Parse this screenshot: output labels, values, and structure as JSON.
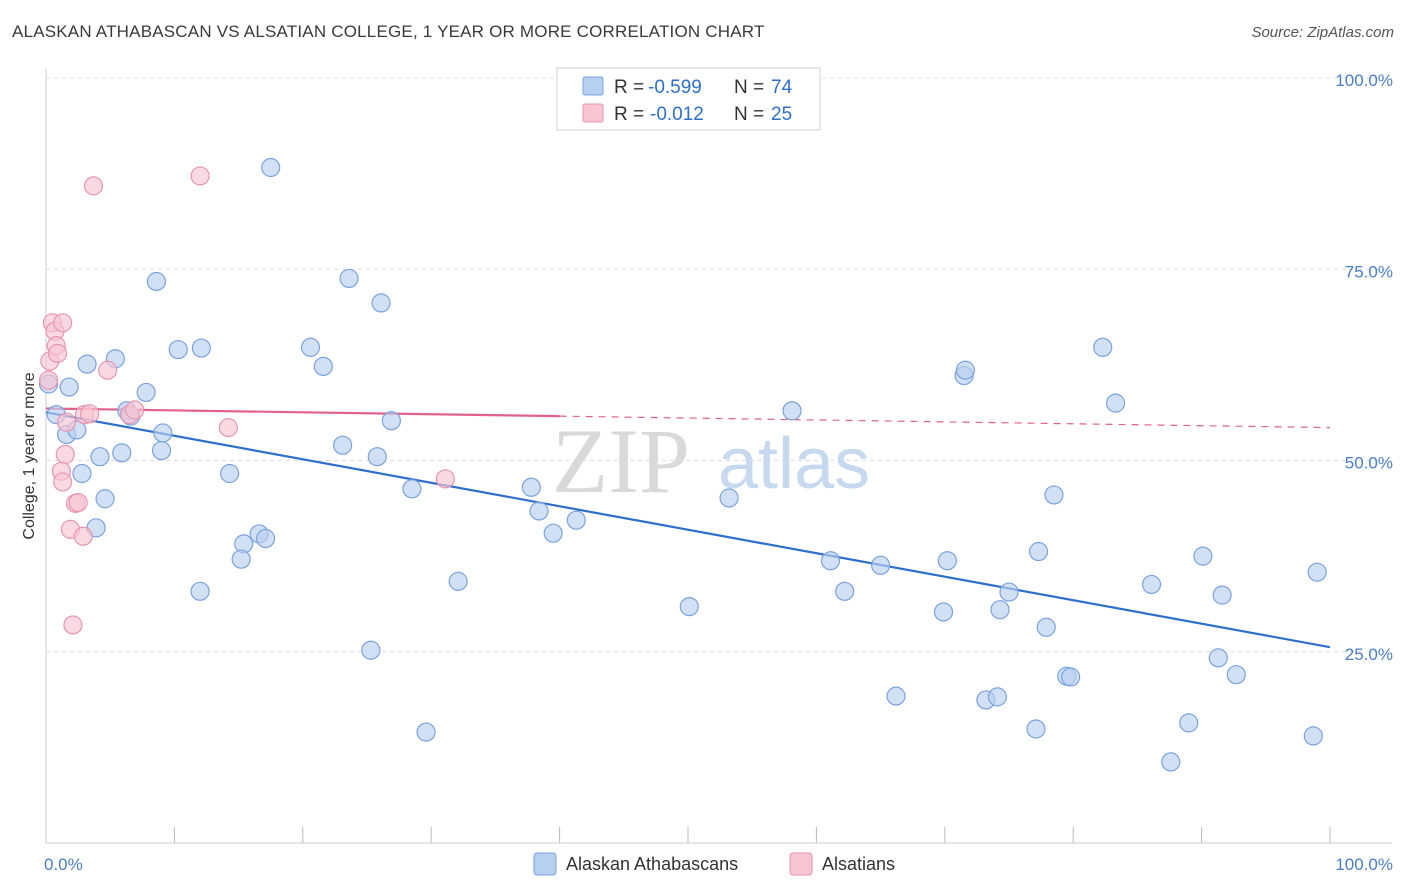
{
  "title": "ALASKAN ATHABASCAN VS ALSATIAN COLLEGE, 1 YEAR OR MORE CORRELATION CHART",
  "source": "Source: ZipAtlas.com",
  "watermark": {
    "zip": "ZIP",
    "atlas": "atlas"
  },
  "colors": {
    "blue_fill": "#b8d0f0",
    "blue_stroke": "#7aa3dc",
    "blue_line": "#2f6fcc",
    "pink_fill": "#f7c5d4",
    "pink_stroke": "#e895b0",
    "pink_line": "#e0628c",
    "grid": "#dddddd",
    "tick_label": "#4a7ec8"
  },
  "legend": {
    "r_label": "R =",
    "n_label": "N =",
    "series": [
      {
        "r": "-0.599",
        "n": "74"
      },
      {
        "r": "-0.012",
        "n": "25"
      }
    ]
  },
  "bottom_legend": [
    "Alaskan Athabascans",
    "Alsatians"
  ],
  "chart_data": {
    "type": "scatter",
    "title": "ALASKAN ATHABASCAN VS ALSATIAN COLLEGE, 1 YEAR OR MORE CORRELATION CHART",
    "xlabel": "",
    "ylabel": "College, 1 year or more",
    "xlim": [
      0,
      100
    ],
    "ylim": [
      0,
      100
    ],
    "x_tick_labels": [
      "0.0%",
      "100.0%"
    ],
    "y_ticks": [
      25,
      50,
      75,
      100
    ],
    "y_tick_labels": [
      "25.0%",
      "50.0%",
      "75.0%",
      "100.0%"
    ],
    "grid": true,
    "series": [
      {
        "name": "Alaskan Athabascans",
        "r": -0.599,
        "n": 74,
        "trend": {
          "x0": 0,
          "y0": 56.3,
          "x1": 100,
          "y1": 25.6
        },
        "points": [
          [
            0.2,
            60.0
          ],
          [
            0.8,
            56.0
          ],
          [
            1.6,
            53.4
          ],
          [
            1.8,
            59.6
          ],
          [
            2.4,
            54.0
          ],
          [
            2.8,
            48.3
          ],
          [
            3.2,
            62.6
          ],
          [
            3.9,
            41.2
          ],
          [
            4.2,
            50.5
          ],
          [
            4.6,
            45.0
          ],
          [
            5.4,
            63.3
          ],
          [
            5.9,
            51.0
          ],
          [
            6.3,
            56.5
          ],
          [
            6.6,
            55.8
          ],
          [
            7.8,
            58.9
          ],
          [
            8.6,
            73.4
          ],
          [
            9.0,
            51.3
          ],
          [
            9.1,
            53.6
          ],
          [
            10.3,
            64.5
          ],
          [
            12.0,
            32.9
          ],
          [
            12.1,
            64.7
          ],
          [
            14.3,
            48.3
          ],
          [
            15.4,
            39.1
          ],
          [
            15.2,
            37.1
          ],
          [
            16.6,
            40.4
          ],
          [
            17.1,
            39.8
          ],
          [
            17.5,
            88.3
          ],
          [
            20.6,
            64.8
          ],
          [
            21.6,
            62.3
          ],
          [
            23.1,
            52.0
          ],
          [
            23.6,
            73.8
          ],
          [
            25.3,
            25.2
          ],
          [
            25.8,
            50.5
          ],
          [
            26.1,
            70.6
          ],
          [
            26.9,
            55.2
          ],
          [
            28.5,
            46.3
          ],
          [
            29.6,
            14.5
          ],
          [
            32.1,
            34.2
          ],
          [
            37.8,
            46.5
          ],
          [
            38.4,
            43.4
          ],
          [
            39.5,
            40.5
          ],
          [
            41.3,
            42.2
          ],
          [
            50.1,
            30.9
          ],
          [
            53.2,
            45.1
          ],
          [
            58.1,
            56.5
          ],
          [
            61.1,
            36.9
          ],
          [
            62.2,
            32.9
          ],
          [
            65.0,
            36.3
          ],
          [
            66.2,
            19.2
          ],
          [
            69.9,
            30.2
          ],
          [
            70.2,
            36.9
          ],
          [
            71.5,
            61.1
          ],
          [
            71.6,
            61.8
          ],
          [
            73.2,
            18.7
          ],
          [
            74.1,
            19.1
          ],
          [
            74.3,
            30.5
          ],
          [
            75.0,
            32.8
          ],
          [
            77.1,
            14.9
          ],
          [
            77.3,
            38.1
          ],
          [
            77.9,
            28.2
          ],
          [
            78.5,
            45.5
          ],
          [
            79.5,
            21.8
          ],
          [
            79.8,
            21.7
          ],
          [
            82.3,
            64.8
          ],
          [
            83.3,
            57.5
          ],
          [
            86.1,
            33.8
          ],
          [
            87.6,
            10.6
          ],
          [
            89.0,
            15.7
          ],
          [
            90.1,
            37.5
          ],
          [
            91.3,
            24.2
          ],
          [
            91.6,
            32.4
          ],
          [
            92.7,
            22.0
          ],
          [
            98.7,
            14.0
          ],
          [
            99.0,
            35.4
          ]
        ]
      },
      {
        "name": "Alsatians",
        "r": -0.012,
        "n": 25,
        "trend": {
          "x0": 0,
          "y0": 56.8,
          "x1": 40,
          "y1": 55.8
        },
        "trend_dashed": {
          "x0": 40,
          "y0": 55.8,
          "x1": 100,
          "y1": 54.3
        },
        "points": [
          [
            0.2,
            60.5
          ],
          [
            0.3,
            63.0
          ],
          [
            0.5,
            68.0
          ],
          [
            0.7,
            66.9
          ],
          [
            0.8,
            65.0
          ],
          [
            0.9,
            64.0
          ],
          [
            1.2,
            48.6
          ],
          [
            1.3,
            47.2
          ],
          [
            1.3,
            68.0
          ],
          [
            1.5,
            50.8
          ],
          [
            1.6,
            55.0
          ],
          [
            1.9,
            41.0
          ],
          [
            2.1,
            28.5
          ],
          [
            2.3,
            44.4
          ],
          [
            2.5,
            44.5
          ],
          [
            2.9,
            40.1
          ],
          [
            3.0,
            56.0
          ],
          [
            3.4,
            56.1
          ],
          [
            3.7,
            85.9
          ],
          [
            4.8,
            61.8
          ],
          [
            6.5,
            56.0
          ],
          [
            6.9,
            56.6
          ],
          [
            12.0,
            87.2
          ],
          [
            14.2,
            54.3
          ],
          [
            31.1,
            47.6
          ]
        ]
      }
    ]
  }
}
